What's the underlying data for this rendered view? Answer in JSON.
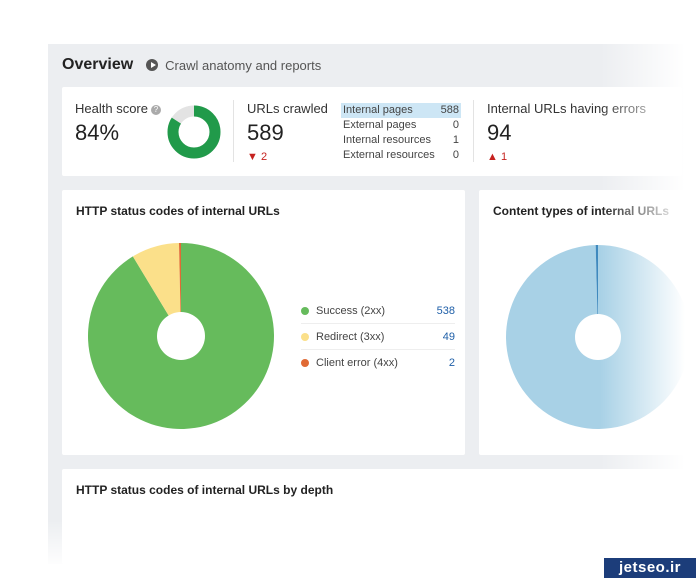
{
  "header": {
    "title": "Overview",
    "subtitle": "Crawl anatomy and reports"
  },
  "health": {
    "label": "Health score",
    "help": "?",
    "value": "84%",
    "score": 84
  },
  "crawled": {
    "label": "URLs crawled",
    "value": "589",
    "delta": "▼ 2"
  },
  "breakdown": [
    {
      "label": "Internal pages",
      "value": "588"
    },
    {
      "label": "External pages",
      "value": "0"
    },
    {
      "label": "Internal resources",
      "value": "1"
    },
    {
      "label": "External resources",
      "value": "0"
    }
  ],
  "errors": {
    "label": "Internal URLs having errors",
    "value": "94",
    "delta": "▲ 1"
  },
  "http_card": {
    "title": "HTTP status codes of internal URLs"
  },
  "content_card": {
    "title": "Content types of internal URLs"
  },
  "depth_card": {
    "title": "HTTP status codes of internal URLs by depth"
  },
  "chart_data": [
    {
      "type": "pie",
      "title": "HTTP status codes of internal URLs",
      "categories": [
        "Success (2xx)",
        "Redirect (3xx)",
        "Client error (4xx)"
      ],
      "values": [
        538,
        49,
        2
      ],
      "labels": [
        "538",
        "49",
        "2"
      ],
      "colors": [
        "#66bb5c",
        "#fbe08a",
        "#e06a35"
      ]
    },
    {
      "type": "pie",
      "title": "Content types of internal URLs",
      "values": [
        99.6,
        0.4
      ],
      "colors": [
        "#a8d1e6",
        "#3f89be"
      ]
    }
  ],
  "watermark": "jetseo.ir"
}
